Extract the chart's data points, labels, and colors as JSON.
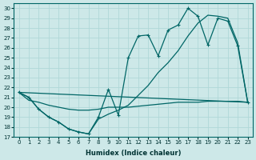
{
  "xlabel": "Humidex (Indice chaleur)",
  "bg_color": "#cde8e8",
  "grid_color": "#b0d8d8",
  "line_color": "#006666",
  "xlim": [
    -0.5,
    23.5
  ],
  "ylim": [
    17,
    30.5
  ],
  "yticks": [
    17,
    18,
    19,
    20,
    21,
    22,
    23,
    24,
    25,
    26,
    27,
    28,
    29,
    30
  ],
  "xticks": [
    0,
    1,
    2,
    3,
    4,
    5,
    6,
    7,
    8,
    9,
    10,
    11,
    12,
    13,
    14,
    15,
    16,
    17,
    18,
    19,
    20,
    21,
    22,
    23
  ],
  "line1_x": [
    0,
    1,
    2,
    3,
    4,
    5,
    6,
    7,
    8,
    9,
    10,
    11,
    12,
    13,
    14,
    15,
    16,
    17,
    18,
    19,
    20,
    21,
    22,
    23
  ],
  "line1_y": [
    21.5,
    21.0,
    19.8,
    19.0,
    18.5,
    17.8,
    17.5,
    17.3,
    19.0,
    21.8,
    19.2,
    25.0,
    27.2,
    27.3,
    25.2,
    27.8,
    28.3,
    30.0,
    29.2,
    26.3,
    29.0,
    28.7,
    26.2,
    20.5
  ],
  "line2_x": [
    0,
    1,
    2,
    3,
    4,
    5,
    6,
    7,
    8,
    9,
    10,
    11,
    12,
    13,
    14,
    15,
    16,
    17,
    18,
    19,
    20,
    21,
    22,
    23
  ],
  "line2_y": [
    21.5,
    21.0,
    19.8,
    19.0,
    18.5,
    17.8,
    17.5,
    17.3,
    18.8,
    19.3,
    19.7,
    20.2,
    21.2,
    22.2,
    23.5,
    24.5,
    25.7,
    27.2,
    28.5,
    29.3,
    29.2,
    29.0,
    26.5,
    20.5
  ],
  "line3_x": [
    0,
    23
  ],
  "line3_y": [
    21.5,
    20.5
  ],
  "line4_x": [
    0,
    1,
    2,
    3,
    4,
    5,
    6,
    7,
    8,
    9,
    10,
    11,
    12,
    13,
    14,
    15,
    16,
    17,
    18,
    19,
    20,
    21,
    22,
    23
  ],
  "line4_y": [
    21.5,
    20.7,
    20.5,
    20.2,
    20.0,
    19.8,
    19.7,
    19.7,
    19.8,
    20.0,
    20.0,
    20.0,
    20.1,
    20.2,
    20.3,
    20.4,
    20.5,
    20.5,
    20.5,
    20.6,
    20.6,
    20.6,
    20.6,
    20.5
  ]
}
